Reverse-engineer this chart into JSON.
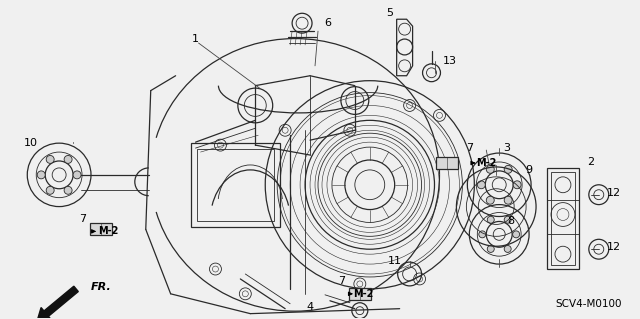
{
  "background_color": "#f0f0f0",
  "diagram_color": "#333333",
  "label_color": "#000000",
  "part_code": "SCV4-M0100",
  "fig_width": 6.4,
  "fig_height": 3.19,
  "dpi": 100
}
